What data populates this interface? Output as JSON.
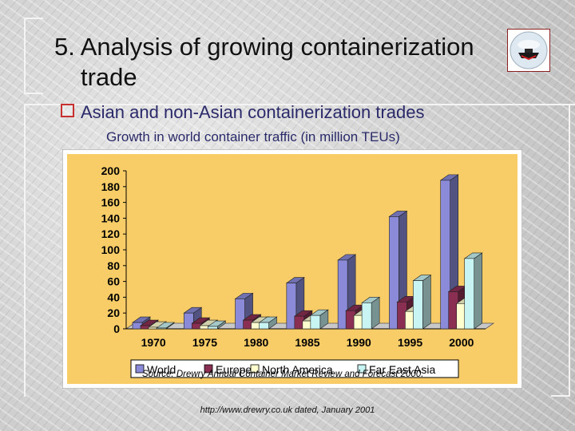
{
  "slide": {
    "title_line1": "5. Analysis of growing containerization",
    "title_line2": "trade",
    "bullet": "Asian and non-Asian containerization trades",
    "subheading": "Growth in world container traffic (in million TEUs)",
    "url": "http://www.drewry.co.uk dated, January 2001",
    "logo_icon": "ship-emblem-icon"
  },
  "chart_data": {
    "type": "bar",
    "style": "3d-clustered",
    "categories": [
      "1970",
      "1975",
      "1980",
      "1985",
      "1990",
      "1995",
      "2000"
    ],
    "series": [
      {
        "name": "World",
        "color": "#8a8ad8",
        "values": [
          8,
          20,
          38,
          58,
          87,
          142,
          188
        ]
      },
      {
        "name": "Europe",
        "color": "#8a2f52",
        "values": [
          4,
          7,
          11,
          16,
          23,
          34,
          47
        ]
      },
      {
        "name": "North America",
        "color": "#ffffd0",
        "values": [
          2,
          4,
          8,
          10,
          17,
          22,
          32
        ]
      },
      {
        "name": "Far East Asia",
        "color": "#c8f4f4",
        "values": [
          1,
          3,
          8,
          17,
          33,
          61,
          89
        ]
      }
    ],
    "ylim": [
      0,
      200
    ],
    "yticks": [
      0,
      20,
      40,
      60,
      80,
      100,
      120,
      140,
      160,
      180,
      200
    ],
    "grid": false,
    "legend": "bottom",
    "source_note": "Source: Drewry Annual Container Market Review and Forecast 2000.",
    "colors": {
      "plot_background": "#f8cc66",
      "outer_background": "#ffffff"
    }
  }
}
